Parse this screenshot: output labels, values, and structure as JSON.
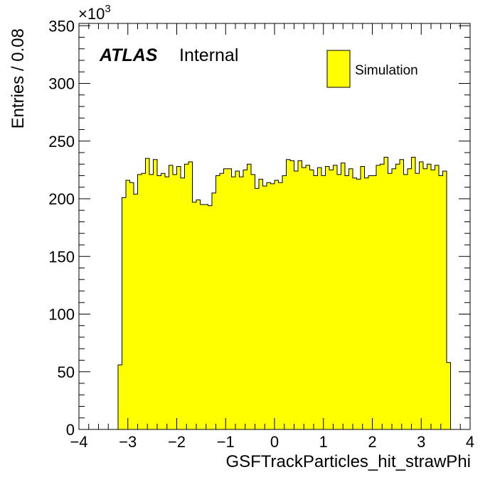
{
  "chart_data": {
    "type": "histogram",
    "xlabel": "GSFTrackParticles_hit_strawPhi",
    "ylabel": "Entries / 0.08",
    "y_multiplier": "×10",
    "y_multiplier_exponent": "3",
    "xlim": [
      -4,
      4
    ],
    "ylim": [
      0,
      352
    ],
    "x_ticks": [
      -4,
      -3,
      -2,
      -1,
      0,
      1,
      2,
      3,
      4
    ],
    "x_tick_labels": [
      "−4",
      "−3",
      "−2",
      "−1",
      "0",
      "1",
      "2",
      "3",
      "4"
    ],
    "y_ticks": [
      0,
      50,
      100,
      150,
      200,
      250,
      300,
      350
    ],
    "y_tick_labels": [
      "0",
      "50",
      "100",
      "150",
      "200",
      "250",
      "300",
      "350"
    ],
    "bin_width": 0.08,
    "bin_start": -3.2,
    "series": [
      {
        "name": "Simulation",
        "color": "#ffff00",
        "values": [
          56,
          201,
          216,
          214,
          204,
          221,
          222,
          235,
          221,
          234,
          220,
          222,
          219,
          229,
          221,
          228,
          218,
          230,
          232,
          197,
          199,
          195,
          195,
          194,
          205,
          220,
          222,
          226,
          226,
          219,
          224,
          219,
          225,
          230,
          221,
          209,
          217,
          211,
          214,
          213,
          216,
          214,
          220,
          234,
          233,
          224,
          233,
          227,
          229,
          225,
          220,
          227,
          220,
          228,
          225,
          229,
          221,
          231,
          220,
          226,
          218,
          217,
          228,
          218,
          220,
          220,
          229,
          230,
          236,
          222,
          226,
          230,
          234,
          221,
          226,
          236,
          222,
          232,
          226,
          230,
          225,
          229,
          220,
          224,
          58
        ]
      }
    ],
    "legend": {
      "position": "top-right",
      "entries": [
        "Simulation"
      ]
    },
    "grid": false
  },
  "labels": {
    "experiment": "ATLAS",
    "status": "Internal"
  }
}
